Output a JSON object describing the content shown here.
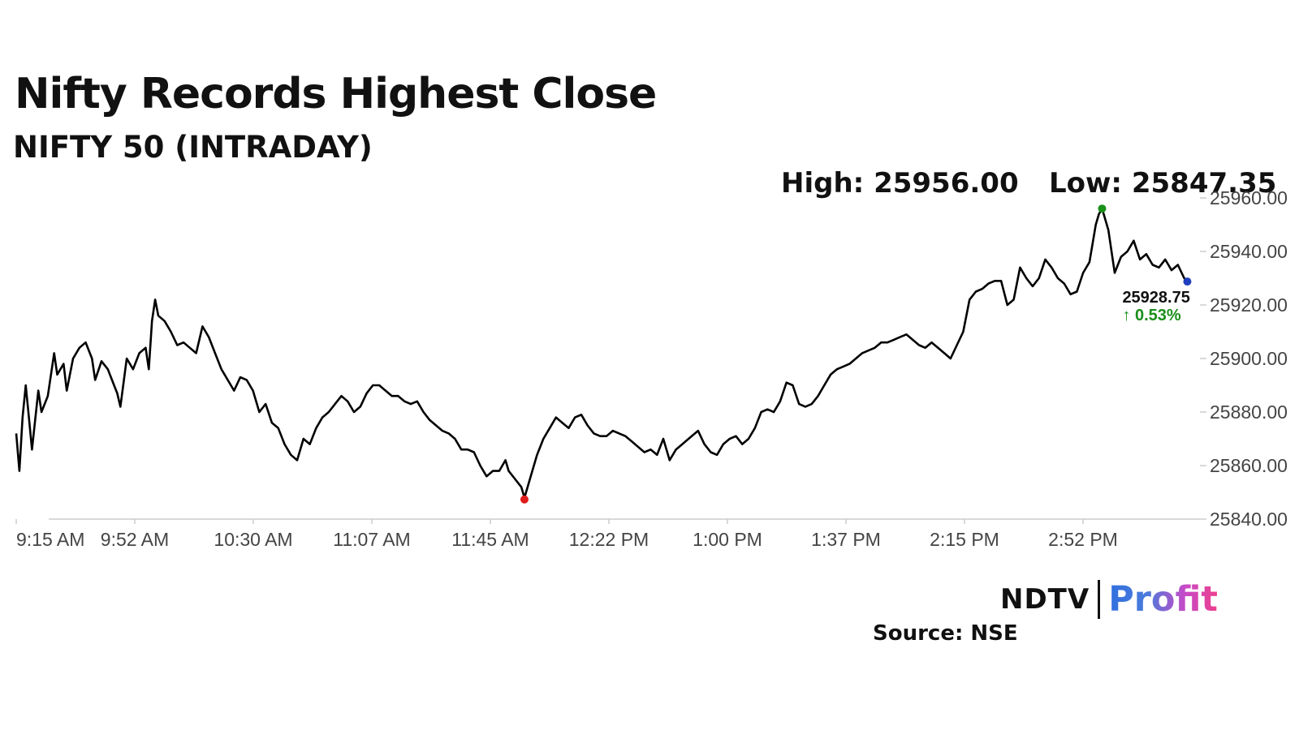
{
  "header": {
    "title": "Nifty Records Highest Close",
    "subtitle": "NIFTY 50 (INTRADAY)",
    "high_label": "High: 25956.00",
    "low_label": "Low: 25847.35"
  },
  "footer": {
    "logo_ndtv": "NDTV",
    "logo_profit": "Profit",
    "source": "Source: NSE"
  },
  "colors": {
    "line": "#000000",
    "high_marker": "#1a8f1a",
    "low_marker": "#e01b1b",
    "last_marker": "#1f3fbf",
    "change_positive": "#1a8f1a",
    "axis": "#cccccc"
  },
  "chart_data": {
    "type": "line",
    "title": "Nifty Records Highest Close",
    "subtitle": "NIFTY 50 (INTRADAY)",
    "xlabel": "",
    "ylabel": "",
    "x_ticks": [
      "9:15 AM",
      "9:52 AM",
      "10:30 AM",
      "11:07 AM",
      "11:45 AM",
      "12:22 PM",
      "1:00 PM",
      "1:37 PM",
      "2:15 PM",
      "2:52 PM"
    ],
    "y_ticks": [
      "25840.00",
      "25860.00",
      "25880.00",
      "25900.00",
      "25920.00",
      "25940.00",
      "25960.00"
    ],
    "ylim": [
      25840,
      25960
    ],
    "x_range_minutes": [
      0,
      375
    ],
    "grid": false,
    "series": [
      {
        "points": [
          [
            0,
            25872
          ],
          [
            1,
            25858
          ],
          [
            2,
            25878
          ],
          [
            3,
            25890
          ],
          [
            4,
            25878
          ],
          [
            5,
            25866
          ],
          [
            7,
            25888
          ],
          [
            8,
            25880
          ],
          [
            10,
            25886
          ],
          [
            12,
            25902
          ],
          [
            13,
            25894
          ],
          [
            15,
            25898
          ],
          [
            16,
            25888
          ],
          [
            18,
            25900
          ],
          [
            20,
            25904
          ],
          [
            22,
            25906
          ],
          [
            24,
            25900
          ],
          [
            25,
            25892
          ],
          [
            27,
            25899
          ],
          [
            29,
            25896
          ],
          [
            31,
            25890
          ],
          [
            32,
            25887
          ],
          [
            33,
            25882
          ],
          [
            35,
            25900
          ],
          [
            37,
            25896
          ],
          [
            39,
            25902
          ],
          [
            41,
            25904
          ],
          [
            42,
            25896
          ],
          [
            43,
            25914
          ],
          [
            44,
            25922
          ],
          [
            45,
            25916
          ],
          [
            47,
            25914
          ],
          [
            49,
            25910
          ],
          [
            51,
            25905
          ],
          [
            53,
            25906
          ],
          [
            55,
            25904
          ],
          [
            57,
            25902
          ],
          [
            59,
            25912
          ],
          [
            61,
            25908
          ],
          [
            63,
            25902
          ],
          [
            65,
            25896
          ],
          [
            67,
            25892
          ],
          [
            69,
            25888
          ],
          [
            71,
            25893
          ],
          [
            73,
            25892
          ],
          [
            75,
            25888
          ],
          [
            77,
            25880
          ],
          [
            79,
            25883
          ],
          [
            81,
            25876
          ],
          [
            83,
            25874
          ],
          [
            85,
            25868
          ],
          [
            87,
            25864
          ],
          [
            89,
            25862
          ],
          [
            91,
            25870
          ],
          [
            93,
            25868
          ],
          [
            95,
            25874
          ],
          [
            97,
            25878
          ],
          [
            99,
            25880
          ],
          [
            101,
            25883
          ],
          [
            103,
            25886
          ],
          [
            105,
            25884
          ],
          [
            107,
            25880
          ],
          [
            109,
            25882
          ],
          [
            111,
            25887
          ],
          [
            113,
            25890
          ],
          [
            115,
            25890
          ],
          [
            117,
            25888
          ],
          [
            119,
            25886
          ],
          [
            121,
            25886
          ],
          [
            123,
            25884
          ],
          [
            125,
            25883
          ],
          [
            127,
            25884
          ],
          [
            129,
            25880
          ],
          [
            131,
            25877
          ],
          [
            133,
            25875
          ],
          [
            135,
            25873
          ],
          [
            137,
            25872
          ],
          [
            139,
            25870
          ],
          [
            141,
            25866
          ],
          [
            143,
            25866
          ],
          [
            145,
            25865
          ],
          [
            147,
            25860
          ],
          [
            149,
            25856
          ],
          [
            151,
            25858
          ],
          [
            153,
            25858
          ],
          [
            155,
            25862
          ],
          [
            156,
            25858
          ],
          [
            158,
            25855
          ],
          [
            160,
            25852
          ],
          [
            161,
            25848
          ],
          [
            163,
            25856
          ],
          [
            165,
            25864
          ],
          [
            167,
            25870
          ],
          [
            169,
            25874
          ],
          [
            171,
            25878
          ],
          [
            173,
            25876
          ],
          [
            175,
            25874
          ],
          [
            177,
            25878
          ],
          [
            179,
            25879
          ],
          [
            181,
            25875
          ],
          [
            183,
            25872
          ],
          [
            185,
            25871
          ],
          [
            187,
            25871
          ],
          [
            189,
            25873
          ],
          [
            191,
            25872
          ],
          [
            193,
            25871
          ],
          [
            195,
            25869
          ],
          [
            197,
            25867
          ],
          [
            199,
            25865
          ],
          [
            201,
            25866
          ],
          [
            203,
            25864
          ],
          [
            205,
            25870
          ],
          [
            207,
            25862
          ],
          [
            209,
            25866
          ],
          [
            211,
            25868
          ],
          [
            213,
            25870
          ],
          [
            215,
            25872
          ],
          [
            216,
            25873
          ],
          [
            218,
            25868
          ],
          [
            220,
            25865
          ],
          [
            222,
            25864
          ],
          [
            224,
            25868
          ],
          [
            226,
            25870
          ],
          [
            228,
            25871
          ],
          [
            230,
            25868
          ],
          [
            232,
            25870
          ],
          [
            234,
            25874
          ],
          [
            236,
            25880
          ],
          [
            238,
            25881
          ],
          [
            240,
            25880
          ],
          [
            242,
            25884
          ],
          [
            244,
            25891
          ],
          [
            246,
            25890
          ],
          [
            248,
            25883
          ],
          [
            250,
            25882
          ],
          [
            252,
            25883
          ],
          [
            254,
            25886
          ],
          [
            256,
            25890
          ],
          [
            258,
            25894
          ],
          [
            260,
            25896
          ],
          [
            262,
            25897
          ],
          [
            264,
            25898
          ],
          [
            266,
            25900
          ],
          [
            268,
            25902
          ],
          [
            270,
            25903
          ],
          [
            272,
            25904
          ],
          [
            274,
            25906
          ],
          [
            276,
            25906
          ],
          [
            278,
            25907
          ],
          [
            280,
            25908
          ],
          [
            282,
            25909
          ],
          [
            284,
            25907
          ],
          [
            286,
            25905
          ],
          [
            288,
            25904
          ],
          [
            290,
            25906
          ],
          [
            292,
            25904
          ],
          [
            294,
            25902
          ],
          [
            296,
            25900
          ],
          [
            298,
            25905
          ],
          [
            300,
            25910
          ],
          [
            302,
            25922
          ],
          [
            304,
            25925
          ],
          [
            306,
            25926
          ],
          [
            308,
            25928
          ],
          [
            310,
            25929
          ],
          [
            312,
            25929
          ],
          [
            314,
            25920
          ],
          [
            316,
            25922
          ],
          [
            318,
            25934
          ],
          [
            320,
            25930
          ],
          [
            322,
            25927
          ],
          [
            324,
            25930
          ],
          [
            326,
            25937
          ],
          [
            328,
            25934
          ],
          [
            330,
            25930
          ],
          [
            332,
            25928
          ],
          [
            334,
            25924
          ],
          [
            336,
            25925
          ],
          [
            338,
            25932
          ],
          [
            340,
            25936
          ],
          [
            342,
            25950
          ],
          [
            343,
            25954
          ],
          [
            344,
            25956
          ],
          [
            346,
            25948
          ],
          [
            348,
            25932
          ],
          [
            350,
            25938
          ],
          [
            352,
            25940
          ],
          [
            354,
            25944
          ],
          [
            356,
            25937
          ],
          [
            358,
            25939
          ],
          [
            360,
            25935
          ],
          [
            362,
            25934
          ],
          [
            364,
            25937
          ],
          [
            366,
            25933
          ],
          [
            368,
            25935
          ],
          [
            370,
            25930
          ],
          [
            371,
            25928.75
          ]
        ]
      }
    ],
    "markers": {
      "high": {
        "x": 344,
        "y": 25956.0,
        "label": "25956.00"
      },
      "low": {
        "x": 161,
        "y": 25847.35,
        "label": "25847.35"
      },
      "last": {
        "x": 371,
        "y": 25928.75,
        "label": "25928.75",
        "change": "↑ 0.53%"
      }
    }
  }
}
